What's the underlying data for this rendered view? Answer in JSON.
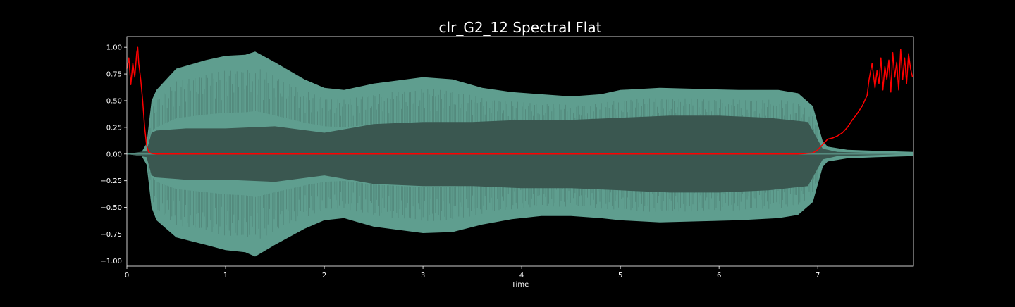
{
  "chart_data": {
    "type": "line",
    "title": "clr_G2_12 Spectral Flat",
    "xlabel": "Time",
    "ylabel": "",
    "xlim": [
      0,
      7.97
    ],
    "ylim": [
      -1.05,
      1.1
    ],
    "xticks": [
      0,
      1,
      2,
      3,
      4,
      5,
      6,
      7
    ],
    "xtick_labels": [
      "0",
      "1",
      "2",
      "3",
      "4",
      "5",
      "6",
      "7"
    ],
    "yticks": [
      1.0,
      0.75,
      0.5,
      0.25,
      0.0,
      -0.25,
      -0.5,
      -0.75,
      -1.0
    ],
    "ytick_labels": [
      "1.00",
      "0.75",
      "0.50",
      "0.25",
      "0.00",
      "−0.25",
      "−0.50",
      "−0.75",
      "−1.00"
    ],
    "grid": false,
    "background_color": "#000000",
    "series": [
      {
        "kind": "waveform_envelope",
        "color": "#5f9e8f",
        "fill_color_inner": "#3a5750",
        "outer_envelope": {
          "x": [
            0.0,
            0.15,
            0.2,
            0.25,
            0.3,
            0.5,
            0.8,
            1.0,
            1.2,
            1.3,
            1.5,
            1.8,
            2.0,
            2.2,
            2.5,
            3.0,
            3.3,
            3.6,
            3.9,
            4.2,
            4.5,
            4.8,
            5.0,
            5.4,
            5.8,
            6.2,
            6.6,
            6.8,
            6.95,
            7.05,
            7.1,
            7.3,
            7.6,
            7.97
          ],
          "upper": [
            0.0,
            0.02,
            0.1,
            0.5,
            0.6,
            0.8,
            0.88,
            0.92,
            0.93,
            0.96,
            0.86,
            0.7,
            0.62,
            0.6,
            0.66,
            0.72,
            0.7,
            0.62,
            0.58,
            0.56,
            0.54,
            0.56,
            0.6,
            0.62,
            0.61,
            0.6,
            0.6,
            0.57,
            0.45,
            0.12,
            0.07,
            0.04,
            0.03,
            0.02
          ],
          "lower": [
            0.0,
            -0.02,
            -0.1,
            -0.5,
            -0.62,
            -0.78,
            -0.85,
            -0.9,
            -0.92,
            -0.96,
            -0.85,
            -0.7,
            -0.62,
            -0.6,
            -0.68,
            -0.74,
            -0.73,
            -0.66,
            -0.61,
            -0.58,
            -0.58,
            -0.6,
            -0.62,
            -0.64,
            -0.63,
            -0.62,
            -0.6,
            -0.57,
            -0.45,
            -0.12,
            -0.07,
            -0.04,
            -0.03,
            -0.02
          ]
        },
        "inner_envelope": {
          "x": [
            0.0,
            0.2,
            0.25,
            0.3,
            0.6,
            1.0,
            1.5,
            2.0,
            2.5,
            3.0,
            3.5,
            4.0,
            4.5,
            5.0,
            5.5,
            6.0,
            6.5,
            6.9,
            7.05,
            7.2,
            7.97
          ],
          "upper": [
            0.0,
            0.03,
            0.2,
            0.22,
            0.24,
            0.24,
            0.26,
            0.2,
            0.28,
            0.3,
            0.3,
            0.32,
            0.32,
            0.34,
            0.36,
            0.36,
            0.34,
            0.3,
            0.05,
            0.02,
            0.0
          ],
          "lower": [
            0.0,
            -0.03,
            -0.2,
            -0.22,
            -0.24,
            -0.24,
            -0.26,
            -0.2,
            -0.28,
            -0.3,
            -0.3,
            -0.32,
            -0.32,
            -0.34,
            -0.36,
            -0.36,
            -0.34,
            -0.3,
            -0.05,
            -0.02,
            0.0
          ]
        }
      },
      {
        "kind": "line",
        "color": "#ff0000",
        "x": [
          0.0,
          0.02,
          0.04,
          0.06,
          0.08,
          0.1,
          0.11,
          0.12,
          0.14,
          0.16,
          0.18,
          0.2,
          0.22,
          0.25,
          0.3,
          1.0,
          2.0,
          3.0,
          4.0,
          5.0,
          6.0,
          6.8,
          6.95,
          7.0,
          7.05,
          7.1,
          7.15,
          7.2,
          7.25,
          7.3,
          7.35,
          7.4,
          7.45,
          7.5,
          7.52,
          7.55,
          7.58,
          7.6,
          7.62,
          7.64,
          7.66,
          7.68,
          7.7,
          7.72,
          7.74,
          7.76,
          7.78,
          7.8,
          7.82,
          7.84,
          7.86,
          7.88,
          7.9,
          7.92,
          7.94,
          7.96
        ],
        "y": [
          0.8,
          0.9,
          0.65,
          0.85,
          0.72,
          0.95,
          1.0,
          0.85,
          0.7,
          0.5,
          0.25,
          0.08,
          0.02,
          0.005,
          0.0,
          0.0,
          0.0,
          0.0,
          0.0,
          0.0,
          0.0,
          0.0,
          0.01,
          0.04,
          0.09,
          0.14,
          0.15,
          0.17,
          0.2,
          0.25,
          0.32,
          0.38,
          0.45,
          0.55,
          0.7,
          0.85,
          0.62,
          0.78,
          0.66,
          0.9,
          0.6,
          0.82,
          0.7,
          0.88,
          0.58,
          0.95,
          0.72,
          0.86,
          0.6,
          0.98,
          0.7,
          0.9,
          0.66,
          0.94,
          0.8,
          0.72
        ]
      }
    ]
  }
}
